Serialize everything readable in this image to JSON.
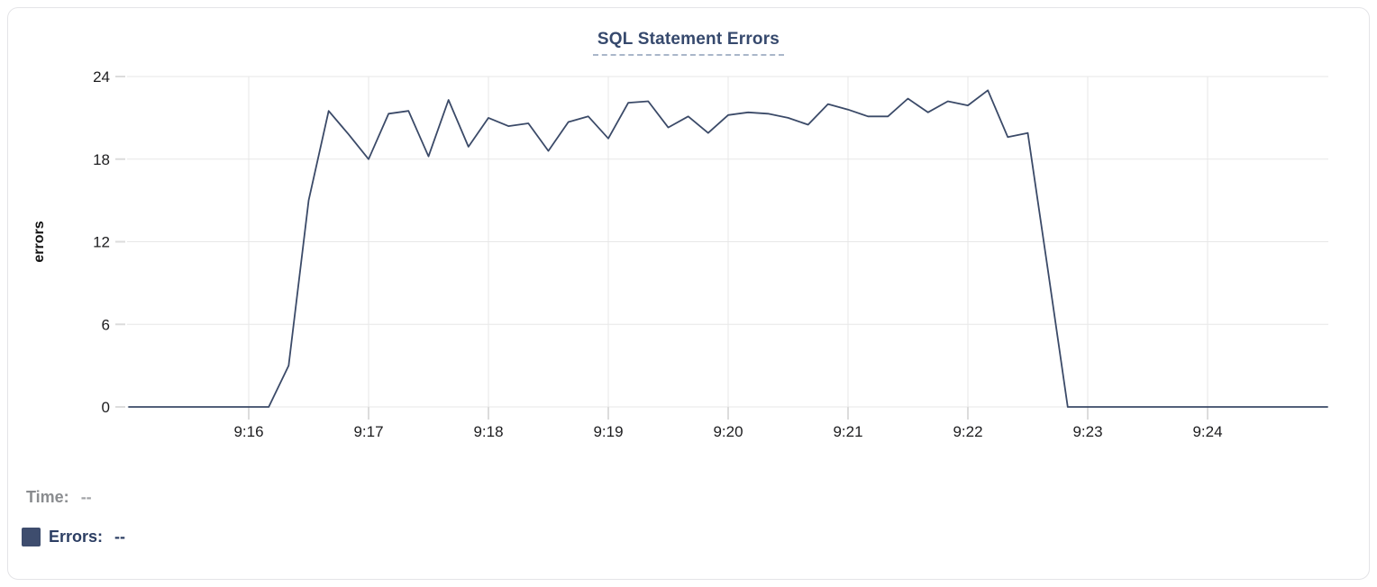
{
  "chart_data": {
    "type": "line",
    "title": "SQL Statement Errors",
    "xlabel": "",
    "ylabel": "errors",
    "ylim": [
      0,
      24
    ],
    "y_ticks": [
      0,
      6,
      12,
      18,
      24
    ],
    "x_ticks": [
      {
        "label": "9:16",
        "index": 6
      },
      {
        "label": "9:17",
        "index": 12
      },
      {
        "label": "9:18",
        "index": 18
      },
      {
        "label": "9:19",
        "index": 24
      },
      {
        "label": "9:20",
        "index": 30
      },
      {
        "label": "9:21",
        "index": 36
      },
      {
        "label": "9:22",
        "index": 42
      },
      {
        "label": "9:23",
        "index": 48
      },
      {
        "label": "9:24",
        "index": 54
      }
    ],
    "grid": true,
    "legend_position": "none",
    "series": [
      {
        "name": "Errors",
        "color": "#3b4a68",
        "start_time": "9:15:00",
        "interval_seconds": 10,
        "values": [
          0,
          0,
          0,
          0,
          0,
          0,
          0,
          0,
          3,
          15,
          21.5,
          19.8,
          18,
          21.3,
          21.5,
          18.2,
          22.3,
          18.9,
          21,
          20.4,
          20.6,
          18.6,
          20.7,
          21.1,
          19.5,
          22.1,
          22.2,
          20.3,
          21.1,
          19.9,
          21.2,
          21.4,
          21.3,
          21,
          20.5,
          22,
          21.6,
          21.1,
          21.1,
          22.4,
          21.4,
          22.2,
          21.9,
          23,
          19.6,
          19.9,
          10,
          0,
          0,
          0,
          0,
          0,
          0,
          0,
          0,
          0,
          0,
          0,
          0,
          0,
          0
        ]
      }
    ]
  },
  "tooltip_readout": {
    "time_label": "Time:",
    "time_value": "--",
    "errors_label": "Errors:",
    "errors_value": "--"
  },
  "colors": {
    "line": "#3b4a68",
    "legend_swatch": "#3e4d6e",
    "title_text": "#36496d",
    "grid_line": "#e7e7e7",
    "tick_mark": "#dcdcdc",
    "axis_label": "#1d1d1f",
    "muted_label": "#8a8c8f",
    "card_border": "#e4e4e7"
  }
}
